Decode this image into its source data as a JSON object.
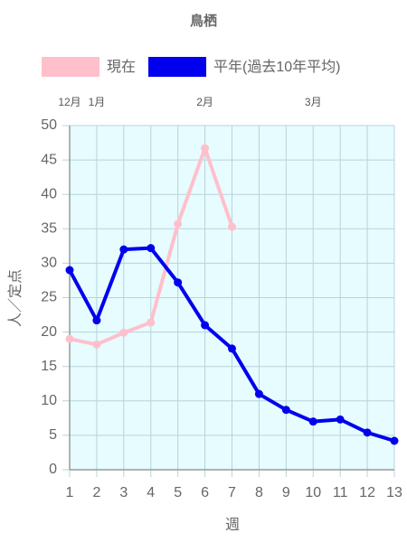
{
  "chart_data": {
    "type": "line",
    "title": "鳥栖",
    "x": [
      1,
      2,
      3,
      4,
      5,
      6,
      7,
      8,
      9,
      10,
      11,
      12,
      13
    ],
    "series": [
      {
        "name": "現在",
        "color": "#ffc0cb",
        "values": [
          19.0,
          18.2,
          19.9,
          21.4,
          35.7,
          46.7,
          35.3,
          null,
          null,
          null,
          null,
          null,
          null
        ]
      },
      {
        "name": "平年(過去10年平均)",
        "color": "#0000ee",
        "values": [
          29.0,
          21.7,
          32.0,
          32.2,
          27.2,
          21.0,
          17.6,
          11.0,
          8.7,
          7.0,
          7.3,
          5.4,
          4.2
        ]
      }
    ],
    "xlim": [
      1,
      13
    ],
    "xticks": [
      1,
      2,
      3,
      4,
      5,
      6,
      7,
      8,
      9,
      10,
      11,
      12,
      13
    ],
    "ylim": [
      0,
      50
    ],
    "yticks": [
      0,
      5,
      10,
      15,
      20,
      25,
      30,
      35,
      40,
      45,
      50
    ],
    "month_labels": [
      {
        "value": 1,
        "label": "12月"
      },
      {
        "value": 2,
        "label": "1月"
      },
      {
        "value": 6,
        "label": "2月"
      },
      {
        "value": 10,
        "label": "3月"
      }
    ],
    "xlabel": "週",
    "ylabel": "人／定点",
    "grid": true,
    "legend": "top"
  }
}
